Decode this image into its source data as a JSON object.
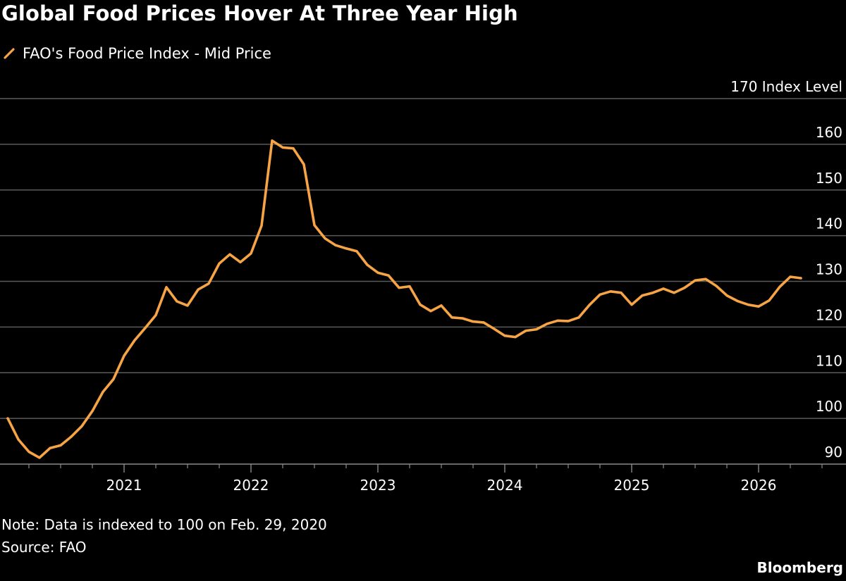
{
  "chart_data": {
    "type": "line",
    "title": "Global Food Prices Hover At Three Year High",
    "subtitle": "",
    "ylabel": "Index Level",
    "xlabel": "",
    "ylim": [
      90,
      170
    ],
    "y_ticks": [
      90,
      100,
      110,
      120,
      130,
      140,
      150,
      160,
      170
    ],
    "y_tick_labels": [
      "90",
      "100",
      "110",
      "120",
      "130",
      "140",
      "150",
      "160",
      "170 Index Level"
    ],
    "x_ticks": [
      "2021",
      "2022",
      "2023",
      "2024",
      "2025",
      "2026"
    ],
    "grid": "horizontal",
    "legend_position": "top-left",
    "series": [
      {
        "name": "FAO's Food Price Index - Mid Price",
        "color": "#f6a445",
        "x": [
          "2020-02",
          "2020-03",
          "2020-04",
          "2020-05",
          "2020-06",
          "2020-07",
          "2020-08",
          "2020-09",
          "2020-10",
          "2020-11",
          "2020-12",
          "2021-01",
          "2021-02",
          "2021-03",
          "2021-04",
          "2021-05",
          "2021-06",
          "2021-07",
          "2021-08",
          "2021-09",
          "2021-10",
          "2021-11",
          "2021-12",
          "2022-01",
          "2022-02",
          "2022-03",
          "2022-04",
          "2022-05",
          "2022-06",
          "2022-07",
          "2022-08",
          "2022-09",
          "2022-10",
          "2022-11",
          "2022-12",
          "2023-01",
          "2023-02",
          "2023-03",
          "2023-04",
          "2023-05",
          "2023-06",
          "2023-07",
          "2023-08",
          "2023-09",
          "2023-10",
          "2023-11",
          "2023-12",
          "2024-01",
          "2024-02",
          "2024-03",
          "2024-04",
          "2024-05",
          "2024-06",
          "2024-07",
          "2024-08",
          "2024-09",
          "2024-10",
          "2024-11",
          "2024-12",
          "2025-01",
          "2025-02",
          "2025-03",
          "2025-04",
          "2025-05",
          "2025-06",
          "2025-07",
          "2025-08",
          "2025-09",
          "2025-10",
          "2025-11",
          "2025-12",
          "2026-01",
          "2026-02",
          "2026-03",
          "2026-04",
          "2026-05"
        ],
        "values": [
          100.0,
          95.4,
          92.7,
          91.4,
          93.5,
          94.1,
          96.0,
          98.3,
          101.6,
          105.8,
          108.6,
          113.7,
          117.1,
          119.8,
          122.6,
          128.7,
          125.6,
          124.7,
          128.2,
          129.5,
          133.9,
          135.9,
          134.2,
          136.1,
          142.2,
          160.8,
          159.3,
          159.1,
          155.6,
          142.3,
          139.4,
          137.9,
          137.2,
          136.6,
          133.6,
          131.9,
          131.3,
          128.6,
          128.9,
          124.9,
          123.5,
          124.7,
          122.1,
          121.9,
          121.2,
          121.0,
          119.6,
          118.1,
          117.8,
          119.2,
          119.5,
          120.7,
          121.4,
          121.3,
          122.1,
          124.8,
          127.1,
          127.8,
          127.5,
          124.9,
          126.9,
          127.5,
          128.4,
          127.5,
          128.6,
          130.2,
          130.5,
          129.0,
          126.9,
          125.7,
          124.9,
          124.5,
          125.8,
          128.8,
          131.0,
          130.7
        ]
      }
    ]
  },
  "header": {
    "title": "Global Food Prices Hover At Three Year High",
    "legend_label": "FAO's Food Price Index - Mid Price"
  },
  "footer": {
    "note": "Note: Data is indexed to 100 on Feb. 29, 2020",
    "source": "Source: FAO",
    "brand": "Bloomberg"
  },
  "colors": {
    "background": "#000000",
    "line": "#f6a445",
    "grid": "#5a5a5a",
    "text": "#ffffff"
  }
}
